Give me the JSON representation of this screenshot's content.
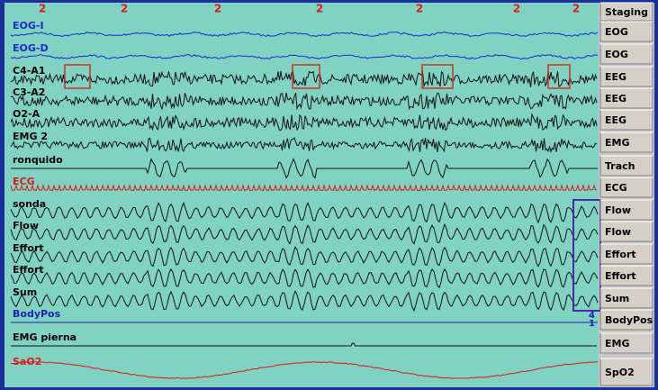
{
  "staging": {
    "header": "Staging",
    "epochs": [
      "2",
      "2",
      "2",
      "2",
      "2",
      "2",
      "2"
    ]
  },
  "channels": [
    {
      "label": "EOG-I",
      "type": "EOG",
      "color": "#1a2ad0"
    },
    {
      "label": "EOG-D",
      "type": "EOG",
      "color": "#1a2ad0"
    },
    {
      "label": "C4-A1",
      "type": "EEG",
      "color": "#000000"
    },
    {
      "label": "C3-A2",
      "type": "EEG",
      "color": "#000000"
    },
    {
      "label": "O2-A",
      "type": "EEG",
      "color": "#000000"
    },
    {
      "label": "EMG 2",
      "type": "EMG",
      "color": "#000000"
    },
    {
      "label": "ronquido",
      "type": "Trach",
      "color": "#000000"
    },
    {
      "label": "ECG",
      "type": "ECG",
      "color": "#e01818"
    },
    {
      "label": "sonda",
      "type": "Flow",
      "color": "#000000"
    },
    {
      "label": "Flow",
      "type": "Flow",
      "color": "#000000"
    },
    {
      "label": "Effort",
      "type": "Effort",
      "color": "#000000"
    },
    {
      "label": "Effort",
      "type": "Effort",
      "color": "#000000"
    },
    {
      "label": "Sum",
      "type": "Sum",
      "color": "#000000"
    },
    {
      "label": "BodyPos",
      "type": "BodyPos",
      "color": "#2020b0"
    },
    {
      "label": "EMG pierna",
      "type": "EMG",
      "color": "#000000"
    },
    {
      "label": "SaO2",
      "type": "SpO2",
      "color": "#e01818"
    }
  ],
  "body_position_values": [
    "4",
    "1"
  ]
}
